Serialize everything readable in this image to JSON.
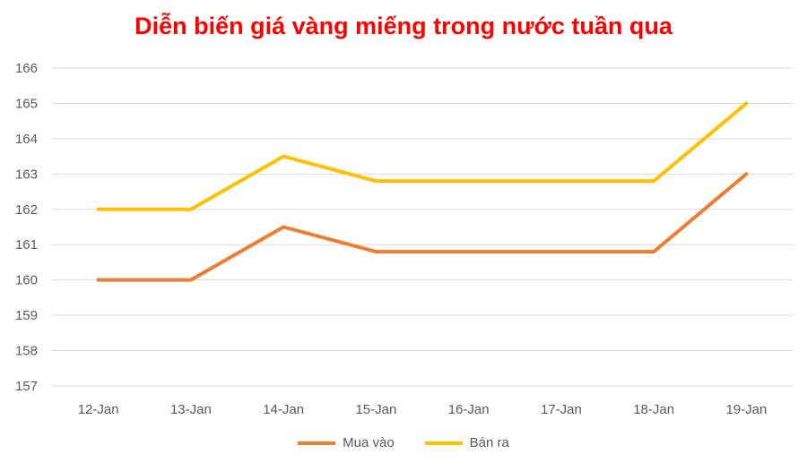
{
  "chart_data": {
    "type": "line",
    "title": "Diễn biến giá vàng miếng trong nước tuần qua",
    "title_color": "#ff0000",
    "categories": [
      "12-Jan",
      "13-Jan",
      "14-Jan",
      "15-Jan",
      "16-Jan",
      "17-Jan",
      "18-Jan",
      "19-Jan"
    ],
    "ylim": [
      157,
      166
    ],
    "yticks": [
      157,
      158,
      159,
      160,
      161,
      162,
      163,
      164,
      165,
      166
    ],
    "grid": true,
    "legend_position": "bottom",
    "series": [
      {
        "name": "Mua vào",
        "color": "#ed7d31",
        "values": [
          160,
          160,
          161.5,
          160.8,
          160.8,
          160.8,
          160.8,
          163
        ]
      },
      {
        "name": "Bán ra",
        "color": "#ffc000",
        "values": [
          162,
          162,
          163.5,
          162.8,
          162.8,
          162.8,
          162.8,
          165
        ]
      }
    ]
  }
}
